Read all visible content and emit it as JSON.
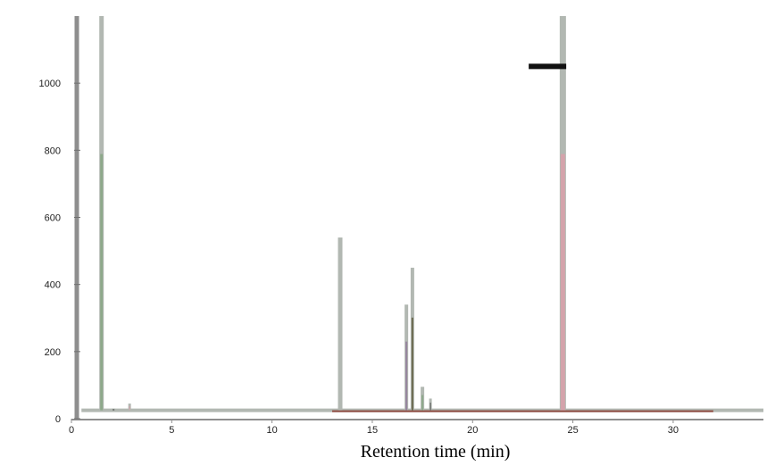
{
  "chart_data": {
    "type": "line",
    "title": "",
    "xlabel": "Retention time (min)",
    "ylabel": "",
    "xlim": [
      0,
      34.5
    ],
    "ylim": [
      0,
      1200
    ],
    "x_ticks": [
      0,
      5,
      10,
      15,
      20,
      25,
      30
    ],
    "y_ticks": [
      0,
      200,
      400,
      600,
      800,
      1000
    ],
    "baseline": 25,
    "grid": false,
    "series": [
      {
        "values": [
          {
            "x": 1.5,
            "y": 1200
          },
          {
            "x": 2.1,
            "y": 30
          },
          {
            "x": 2.9,
            "y": 45
          },
          {
            "x": 13.4,
            "y": 540
          },
          {
            "x": 16.7,
            "y": 340
          },
          {
            "x": 17.0,
            "y": 450
          },
          {
            "x": 17.5,
            "y": 95
          },
          {
            "x": 17.9,
            "y": 60
          },
          {
            "x": 24.5,
            "y": 1200
          }
        ]
      }
    ],
    "annotations": [
      {
        "x": 24.0,
        "y": 1050,
        "text": ""
      }
    ]
  },
  "colors": {
    "axis": "#8e8e8e",
    "trace": "#b2b8b2",
    "peak_green": "#7fa27b",
    "peak_dark": "#2a2a2a",
    "peak_pink": "#e39aa8",
    "peak_purple": "#8a6e96",
    "peak_olive": "#4e4a28",
    "baseline": "#8c4a3f"
  }
}
